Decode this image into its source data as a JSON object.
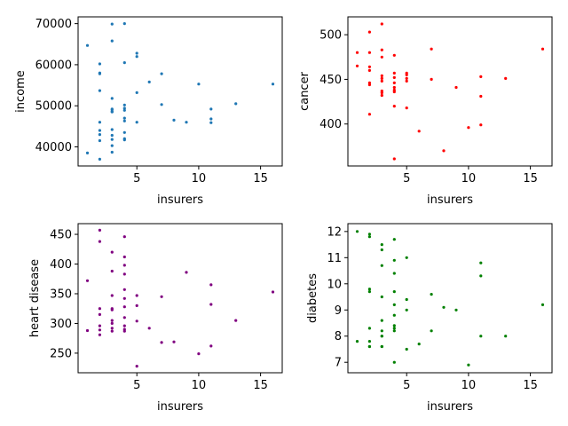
{
  "chart_data": [
    {
      "type": "scatter",
      "xlabel": "insurers",
      "ylabel": "income",
      "color": "#1f77b4",
      "xlim": [
        0.25,
        16.75
      ],
      "ylim": [
        35350,
        71650
      ],
      "xticks": [
        5,
        10,
        15
      ],
      "yticks": [
        40000,
        50000,
        60000,
        70000
      ],
      "x": [
        1,
        1,
        2,
        2,
        2,
        2,
        2,
        2,
        2,
        2,
        2,
        3,
        3,
        3,
        3,
        3,
        3,
        3,
        3,
        3,
        3,
        3,
        3,
        4,
        4,
        4,
        4,
        4,
        4,
        4,
        4,
        4,
        4,
        5,
        5,
        5,
        5,
        6,
        7,
        7,
        8,
        9,
        10,
        11,
        11,
        11,
        13,
        16
      ],
      "y": [
        64700,
        38500,
        60200,
        58000,
        53700,
        46000,
        44000,
        43000,
        41500,
        37000,
        57800,
        69900,
        65800,
        51800,
        49200,
        48500,
        44200,
        42800,
        41800,
        40300,
        38700,
        49000,
        48600,
        70000,
        60500,
        50200,
        49400,
        48900,
        47000,
        46300,
        43500,
        42000,
        41700,
        62800,
        62000,
        53200,
        46000,
        55800,
        57800,
        50300,
        46500,
        46000,
        55300,
        49200,
        46800,
        45900,
        50500,
        55300
      ]
    },
    {
      "type": "scatter",
      "xlabel": "insurers",
      "ylabel": "cancer",
      "color": "#ff0000",
      "xlim": [
        0.25,
        16.75
      ],
      "ylim": [
        353,
        520
      ],
      "xticks": [
        5,
        10,
        15
      ],
      "yticks": [
        400,
        450,
        500
      ],
      "x": [
        1,
        1,
        2,
        2,
        2,
        2,
        2,
        2,
        2,
        3,
        3,
        3,
        3,
        3,
        3,
        3,
        3,
        3,
        4,
        4,
        4,
        4,
        4,
        4,
        4,
        4,
        4,
        5,
        5,
        5,
        5,
        5,
        6,
        7,
        7,
        8,
        9,
        10,
        11,
        11,
        11,
        13,
        16
      ],
      "y": [
        480,
        465,
        503,
        480,
        464,
        460,
        446,
        444,
        411,
        512,
        483,
        475,
        454,
        451,
        448,
        437,
        435,
        432,
        477,
        457,
        452,
        446,
        441,
        438,
        436,
        420,
        361,
        457,
        455,
        451,
        448,
        418,
        392,
        484,
        450,
        370,
        441,
        396,
        453,
        431,
        399,
        451,
        484
      ]
    },
    {
      "type": "scatter",
      "xlabel": "insurers",
      "ylabel": "heart disease",
      "color": "#800080",
      "xlim": [
        0.25,
        16.75
      ],
      "ylim": [
        217,
        468
      ],
      "xticks": [
        5,
        10,
        15
      ],
      "yticks": [
        250,
        300,
        350,
        400,
        450
      ],
      "x": [
        1,
        1,
        2,
        2,
        2,
        2,
        2,
        2,
        2,
        3,
        3,
        3,
        3,
        3,
        3,
        3,
        3,
        3,
        4,
        4,
        4,
        4,
        4,
        4,
        4,
        4,
        4,
        4,
        4,
        5,
        5,
        5,
        5,
        6,
        7,
        7,
        8,
        9,
        10,
        11,
        11,
        11,
        13,
        16
      ],
      "y": [
        372,
        288,
        457,
        438,
        325,
        315,
        296,
        289,
        281,
        420,
        388,
        347,
        325,
        305,
        300,
        292,
        287,
        323,
        446,
        412,
        398,
        383,
        357,
        342,
        328,
        310,
        296,
        290,
        287,
        347,
        330,
        304,
        228,
        292,
        345,
        268,
        269,
        386,
        249,
        365,
        332,
        262,
        305,
        353
      ]
    },
    {
      "type": "scatter",
      "xlabel": "insurers",
      "ylabel": "diabetes",
      "color": "#008000",
      "xlim": [
        0.25,
        16.75
      ],
      "ylim": [
        6.6,
        12.3
      ],
      "xticks": [
        5,
        10,
        15
      ],
      "yticks": [
        7,
        8,
        9,
        10,
        11,
        12
      ],
      "x": [
        1,
        1,
        2,
        2,
        2,
        2,
        2,
        2,
        2,
        2,
        3,
        3,
        3,
        3,
        3,
        3,
        3,
        3,
        3,
        3,
        4,
        4,
        4,
        4,
        4,
        4,
        4,
        4,
        4,
        4,
        5,
        5,
        5,
        5,
        6,
        7,
        7,
        8,
        9,
        10,
        11,
        11,
        11,
        13,
        16
      ],
      "y": [
        12.0,
        7.8,
        11.9,
        11.8,
        9.8,
        9.7,
        8.3,
        7.8,
        7.6,
        7.6,
        11.5,
        11.3,
        10.7,
        9.5,
        8.6,
        8.2,
        8.0,
        8.0,
        7.6,
        7.6,
        11.7,
        10.9,
        10.4,
        9.7,
        9.2,
        8.8,
        8.4,
        8.3,
        8.2,
        7.0,
        11.0,
        9.4,
        9.0,
        7.5,
        7.7,
        9.6,
        8.2,
        9.1,
        9.0,
        6.9,
        10.8,
        10.3,
        8.0,
        8.0,
        9.2
      ]
    }
  ]
}
